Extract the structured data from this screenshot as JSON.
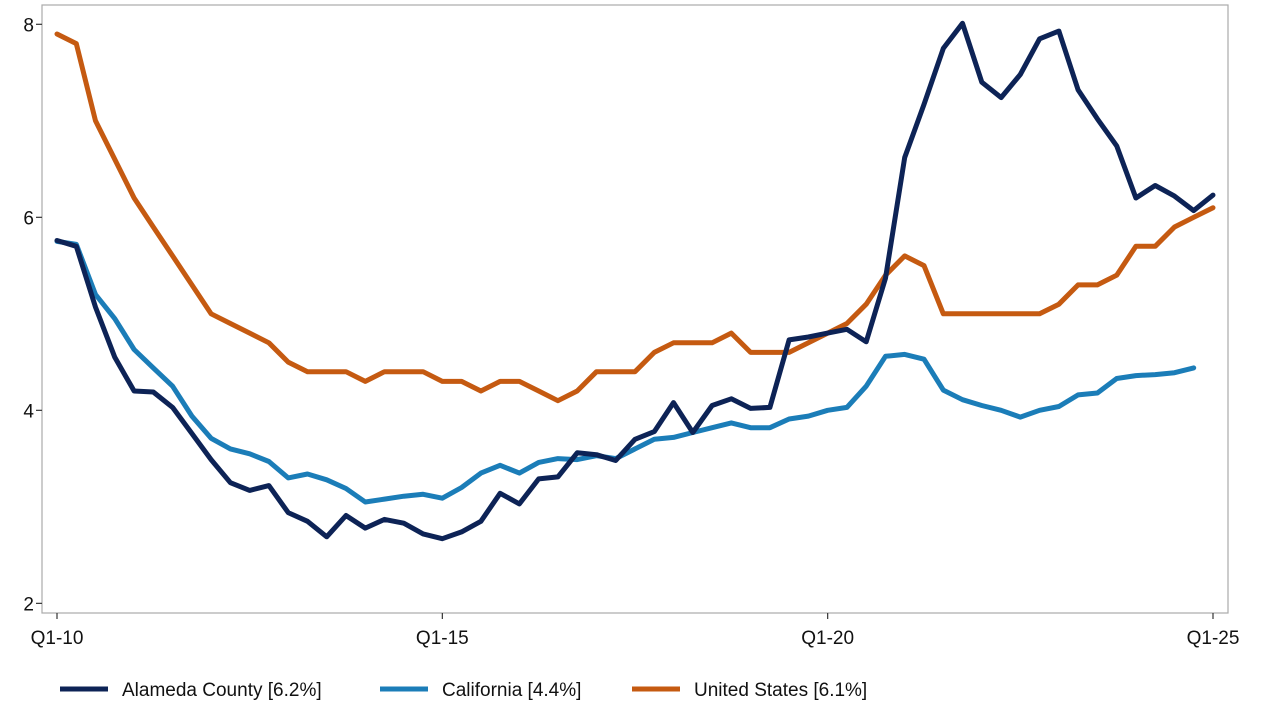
{
  "chart_data": {
    "type": "line",
    "title": "",
    "xlabel": "",
    "ylabel": "",
    "x_start": "Q1-10",
    "x_interval": "quarter",
    "xlim": [
      0,
      60
    ],
    "ylim": [
      1.9,
      8.2
    ],
    "x_ticks": [
      {
        "index": 0,
        "label": "Q1-10"
      },
      {
        "index": 20,
        "label": "Q1-15"
      },
      {
        "index": 40,
        "label": "Q1-20"
      },
      {
        "index": 60,
        "label": "Q1-25"
      }
    ],
    "y_ticks": [
      2,
      4,
      6,
      8
    ],
    "grid": false,
    "legend_position": "bottom",
    "series": [
      {
        "name": "Alameda County [6.2%]",
        "color": "#0d2356",
        "values": [
          5.76,
          5.7,
          5.07,
          4.55,
          4.2,
          4.19,
          4.03,
          3.76,
          3.49,
          3.25,
          3.17,
          3.22,
          2.94,
          2.85,
          2.69,
          2.91,
          2.78,
          2.87,
          2.83,
          2.72,
          2.67,
          2.74,
          2.85,
          3.14,
          3.03,
          3.29,
          3.31,
          3.56,
          3.54,
          3.48,
          3.7,
          3.78,
          4.08,
          3.77,
          4.05,
          4.12,
          4.02,
          4.03,
          4.73,
          4.76,
          4.8,
          4.84,
          4.71,
          5.37,
          6.62,
          7.17,
          7.75,
          8.01,
          7.4,
          7.24,
          7.48,
          7.85,
          7.93,
          7.32,
          7.02,
          6.74,
          6.2,
          6.33,
          6.22,
          6.07,
          6.23
        ]
      },
      {
        "name": "California [4.4%]",
        "color": "#1b7db8",
        "values": [
          5.75,
          5.72,
          5.2,
          4.95,
          4.63,
          4.44,
          4.25,
          3.94,
          3.71,
          3.6,
          3.55,
          3.47,
          3.3,
          3.34,
          3.28,
          3.19,
          3.05,
          3.08,
          3.11,
          3.13,
          3.09,
          3.2,
          3.35,
          3.43,
          3.35,
          3.46,
          3.5,
          3.49,
          3.53,
          3.5,
          3.6,
          3.7,
          3.72,
          3.77,
          3.82,
          3.87,
          3.82,
          3.82,
          3.91,
          3.94,
          4.0,
          4.03,
          4.25,
          4.56,
          4.58,
          4.53,
          4.21,
          4.11,
          4.05,
          4.0,
          3.93,
          4.0,
          4.04,
          4.16,
          4.18,
          4.33,
          4.36,
          4.37,
          4.39,
          4.44
        ]
      },
      {
        "name": "United States [6.1%]",
        "color": "#c55a11",
        "values": [
          7.9,
          7.8,
          7.0,
          6.6,
          6.2,
          5.9,
          5.6,
          5.3,
          5.0,
          4.9,
          4.8,
          4.7,
          4.5,
          4.4,
          4.4,
          4.4,
          4.3,
          4.4,
          4.4,
          4.4,
          4.3,
          4.3,
          4.2,
          4.3,
          4.3,
          4.2,
          4.1,
          4.2,
          4.4,
          4.4,
          4.4,
          4.6,
          4.7,
          4.7,
          4.7,
          4.8,
          4.6,
          4.6,
          4.6,
          4.7,
          4.8,
          4.9,
          5.1,
          5.4,
          5.6,
          5.5,
          5.0,
          5.0,
          5.0,
          5.0,
          5.0,
          5.0,
          5.1,
          5.3,
          5.3,
          5.4,
          5.7,
          5.7,
          5.9,
          6.0,
          6.1
        ]
      }
    ]
  }
}
